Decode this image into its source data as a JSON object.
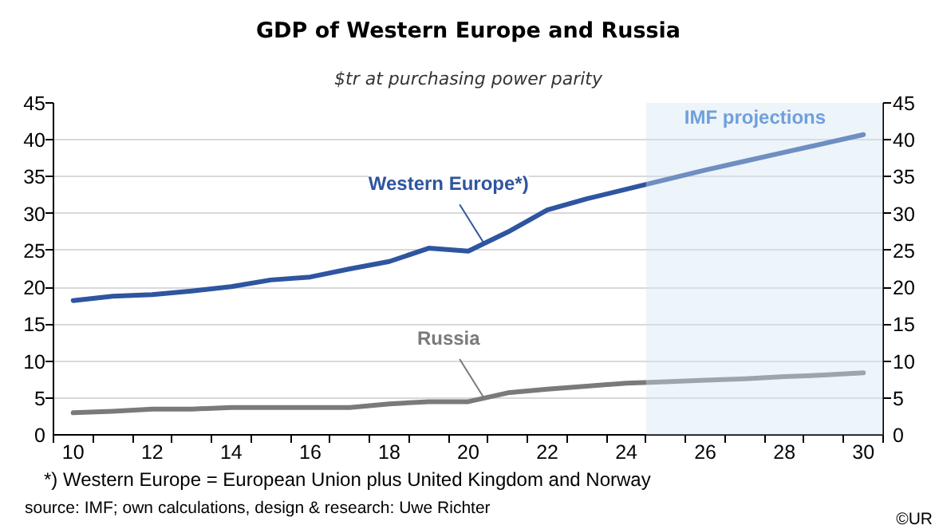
{
  "chart_data": {
    "type": "line",
    "title": "GDP of Western Europe and Russia",
    "subtitle": "$tr at purchasing power parity",
    "x": [
      10,
      11,
      12,
      13,
      14,
      15,
      16,
      17,
      18,
      19,
      20,
      21,
      22,
      23,
      24,
      25,
      26,
      27,
      28,
      29,
      30
    ],
    "series": [
      {
        "name": "Western Europe*)",
        "color": "#2e55a0",
        "values": [
          18.2,
          18.8,
          19.0,
          19.5,
          20.1,
          21.0,
          21.4,
          22.5,
          23.5,
          25.3,
          24.9,
          27.5,
          30.5,
          32.0,
          33.3,
          34.6,
          35.9,
          37.1,
          38.3,
          39.5,
          40.7
        ]
      },
      {
        "name": "Russia",
        "color": "#7a7a7a",
        "values": [
          3.0,
          3.2,
          3.5,
          3.5,
          3.7,
          3.7,
          3.7,
          3.7,
          4.2,
          4.5,
          4.5,
          5.7,
          6.2,
          6.6,
          7.0,
          7.2,
          7.4,
          7.6,
          7.9,
          8.1,
          8.4
        ]
      }
    ],
    "xlim": [
      9.5,
      30.5
    ],
    "xticks": [
      {
        "value": 9.5,
        "label": null
      },
      10,
      {
        "value": 10.5,
        "label": null
      },
      {
        "value": 11.5,
        "label": null
      },
      12,
      {
        "value": 12.5,
        "label": null
      },
      {
        "value": 13.5,
        "label": null
      },
      14,
      {
        "value": 14.5,
        "label": null
      },
      {
        "value": 15.5,
        "label": null
      },
      16,
      {
        "value": 16.5,
        "label": null
      },
      {
        "value": 17.5,
        "label": null
      },
      18,
      {
        "value": 18.5,
        "label": null
      },
      {
        "value": 19.5,
        "label": null
      },
      20,
      {
        "value": 20.5,
        "label": null
      },
      {
        "value": 21.5,
        "label": null
      },
      22,
      {
        "value": 22.5,
        "label": null
      },
      {
        "value": 23.5,
        "label": null
      },
      24,
      {
        "value": 24.5,
        "label": null
      },
      {
        "value": 25.5,
        "label": null
      },
      26,
      {
        "value": 26.5,
        "label": null
      },
      {
        "value": 27.5,
        "label": null
      },
      28,
      {
        "value": 28.5,
        "label": null
      },
      {
        "value": 29.5,
        "label": null
      },
      30,
      {
        "value": 30.5,
        "label": null
      }
    ],
    "ylim": [
      0,
      45
    ],
    "yticks": [
      0,
      5,
      10,
      15,
      20,
      25,
      30,
      35,
      40,
      45
    ],
    "y2lim": [
      0,
      45
    ],
    "y2ticks": [
      0,
      5,
      10,
      15,
      20,
      25,
      30,
      35,
      40,
      45
    ],
    "grid": "y",
    "bands": [
      {
        "axis": "x",
        "from": 24.5,
        "to": 30.5,
        "label": "IMF projections",
        "color": "#d3e3f2"
      }
    ],
    "annotations": [
      "*) Western Europe = European Union plus United Kingdom and Norway",
      "source: IMF;  own calculations, design & research: Uwe Richter",
      "©UR"
    ]
  }
}
